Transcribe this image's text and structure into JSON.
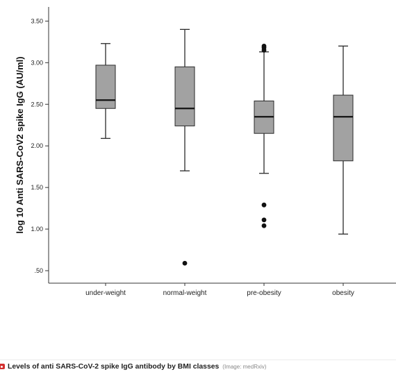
{
  "colors": {
    "background": "#ffffff",
    "box_fill": "#a2a2a2",
    "box_stroke": "#2a2a2a",
    "median": "#111111",
    "axis": "#333333",
    "outlier": "#111111",
    "caption_icon": "#d32f2f",
    "caption_text": "#222222",
    "credit_text": "#888888"
  },
  "chart_data": {
    "type": "box",
    "ylabel": "log 10 Anti SARS-CoV2 spike IgG (AU/ml)",
    "ylim": [
      0.35,
      3.67
    ],
    "grid": false,
    "yticks": [
      {
        "value": 3.5,
        "label": "3.50"
      },
      {
        "value": 3.0,
        "label": "3.00"
      },
      {
        "value": 2.5,
        "label": "2.50"
      },
      {
        "value": 2.0,
        "label": "2.00"
      },
      {
        "value": 1.5,
        "label": "1.50"
      },
      {
        "value": 1.0,
        "label": "1.00"
      },
      {
        "value": 0.5,
        "label": ".50"
      }
    ],
    "categories": [
      "under-weight",
      "normal-weight",
      "pre-obesity",
      "obesity"
    ],
    "boxes": [
      {
        "max": 3.23,
        "q3": 2.97,
        "median": 2.55,
        "q1": 2.45,
        "min": 2.09,
        "outliers": []
      },
      {
        "max": 3.4,
        "q3": 2.95,
        "median": 2.45,
        "q1": 2.24,
        "min": 1.7,
        "outliers": [
          0.59
        ]
      },
      {
        "max": 3.13,
        "q3": 2.54,
        "median": 2.35,
        "q1": 2.15,
        "min": 1.67,
        "outliers": [
          3.2,
          3.18,
          3.15,
          1.29,
          1.11,
          1.04
        ]
      },
      {
        "max": 3.2,
        "q3": 2.61,
        "median": 2.35,
        "q1": 1.82,
        "min": 0.94,
        "outliers": []
      }
    ]
  },
  "caption": {
    "icon": "camera-icon",
    "text": "Levels of anti SARS-CoV-2 spike IgG antibody by BMI classes",
    "credit": "(Image: medRxiv)"
  }
}
